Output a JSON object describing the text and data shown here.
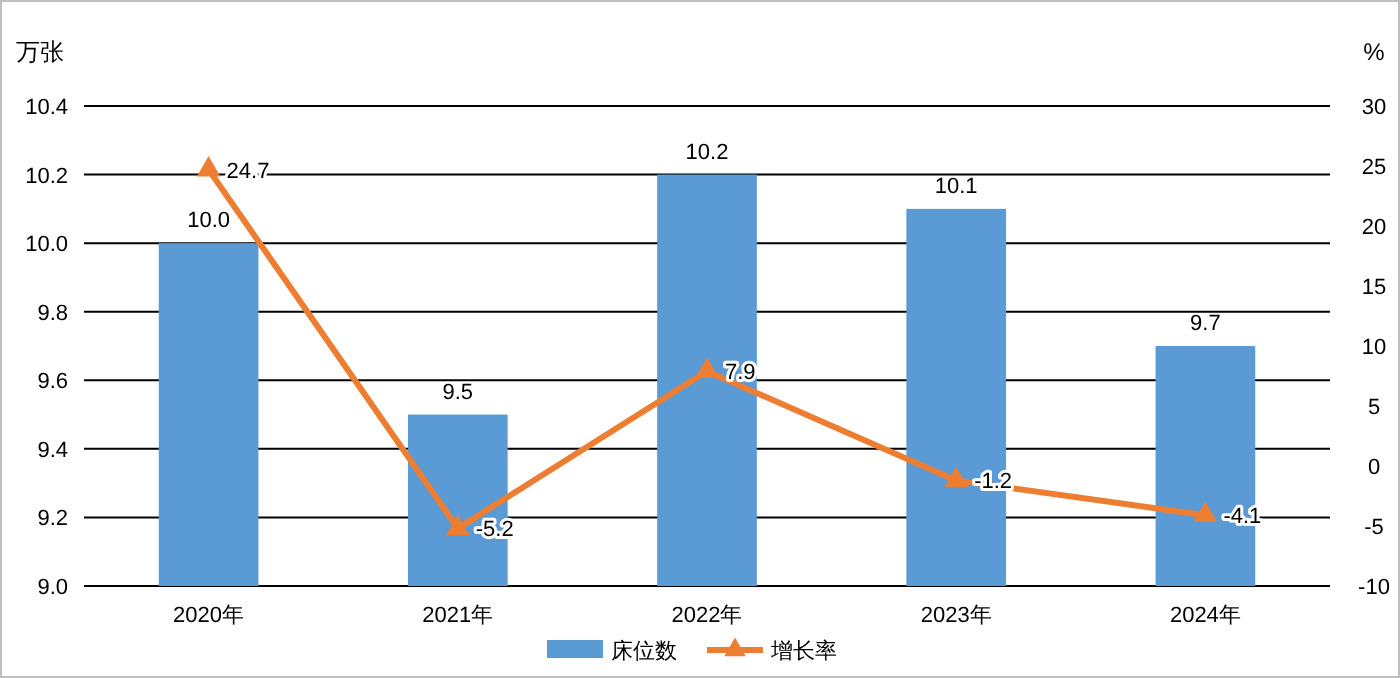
{
  "chart_data": {
    "type": "bar",
    "categories": [
      "2020年",
      "2021年",
      "2022年",
      "2023年",
      "2024年"
    ],
    "ylabel": "万张",
    "y2label": "%",
    "ylim": [
      9.0,
      10.4
    ],
    "yticks": [
      {
        "value": 9.0,
        "label": "9.0"
      },
      {
        "value": 9.2,
        "label": "9.2"
      },
      {
        "value": 9.4,
        "label": "9.4"
      },
      {
        "value": 9.6,
        "label": "9.6"
      },
      {
        "value": 9.8,
        "label": "9.8"
      },
      {
        "value": 10.0,
        "label": "10.0"
      },
      {
        "value": 10.2,
        "label": "10.2"
      },
      {
        "value": 10.4,
        "label": "10.4"
      }
    ],
    "y2lim": [
      -10,
      30
    ],
    "y2ticks": [
      -10,
      -5,
      0,
      5,
      10,
      15,
      20,
      25,
      30
    ],
    "series": [
      {
        "name": "床位数",
        "color": "#5b9bd5",
        "values": [
          10.0,
          9.5,
          10.2,
          10.1,
          9.7
        ],
        "value_labels": [
          "10.0",
          "9.5",
          "10.2",
          "10.1",
          "9.7"
        ]
      },
      {
        "name": "增长率",
        "type": "line",
        "axis": "y2",
        "color": "#ed7d31",
        "marker": "triangle",
        "values": [
          24.7,
          -5.2,
          7.9,
          -1.2,
          -4.1
        ]
      }
    ],
    "data_labels": true,
    "grid": "y",
    "legend": "bottom"
  }
}
